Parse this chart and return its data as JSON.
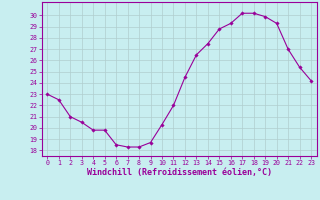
{
  "x": [
    0,
    1,
    2,
    3,
    4,
    5,
    6,
    7,
    8,
    9,
    10,
    11,
    12,
    13,
    14,
    15,
    16,
    17,
    18,
    19,
    20,
    21,
    22,
    23
  ],
  "y": [
    23,
    22.5,
    21,
    20.5,
    19.8,
    19.8,
    18.5,
    18.3,
    18.3,
    18.7,
    20.3,
    22,
    24.5,
    26.5,
    27.5,
    28.8,
    29.3,
    30.2,
    30.2,
    29.9,
    29.3,
    27,
    25.4,
    24.2
  ],
  "line_color": "#990099",
  "marker": "D",
  "markersize": 1.8,
  "linewidth": 0.8,
  "bg_color": "#c8eef0",
  "grid_color": "#b0cece",
  "xlabel": "Windchill (Refroidissement éolien,°C)",
  "xlim": [
    -0.5,
    23.5
  ],
  "ylim": [
    17.5,
    31.2
  ],
  "yticks": [
    18,
    19,
    20,
    21,
    22,
    23,
    24,
    25,
    26,
    27,
    28,
    29,
    30
  ],
  "xticks": [
    0,
    1,
    2,
    3,
    4,
    5,
    6,
    7,
    8,
    9,
    10,
    11,
    12,
    13,
    14,
    15,
    16,
    17,
    18,
    19,
    20,
    21,
    22,
    23
  ],
  "tick_color": "#990099",
  "tick_fontsize": 4.8,
  "xlabel_fontsize": 6.0,
  "spine_color": "#990099",
  "spine_linewidth": 0.8
}
